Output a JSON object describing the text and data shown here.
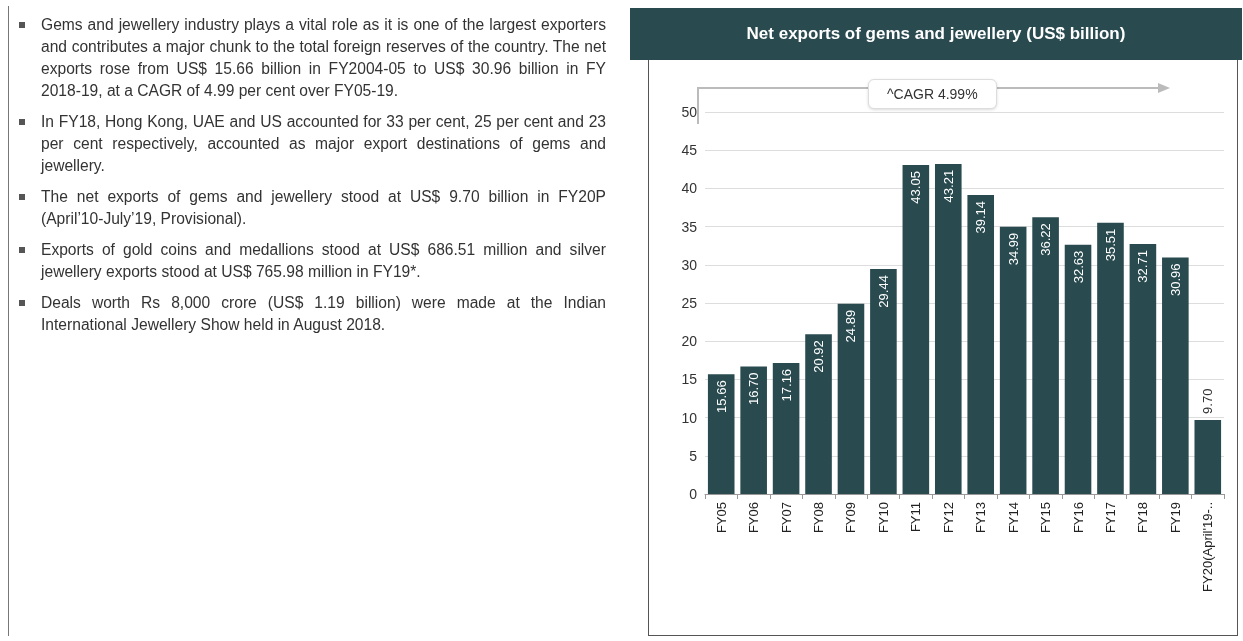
{
  "chart_data": {
    "type": "bar",
    "title": "Net exports of gems and jewellery (US$ billion)",
    "categories": [
      "FY05",
      "FY06",
      "FY07",
      "FY08",
      "FY09",
      "FY10",
      "FY11",
      "FY12",
      "FY13",
      "FY14",
      "FY15",
      "FY16",
      "FY17",
      "FY18",
      "FY19",
      "FY20(April'19-.."
    ],
    "values": [
      15.66,
      16.7,
      17.16,
      20.92,
      24.89,
      29.44,
      43.05,
      43.21,
      39.14,
      34.99,
      36.22,
      32.63,
      35.51,
      32.71,
      30.96,
      9.7
    ],
    "value_labels": [
      "15.66",
      "16.70",
      "17.16",
      "20.92",
      "24.89",
      "29.44",
      "43.05",
      "43.21",
      "39.14",
      "34.99",
      "36.22",
      "32.63",
      "35.51",
      "32.71",
      "30.96",
      "9.70"
    ],
    "color": "#294a4f",
    "ylim": [
      0,
      50
    ],
    "yticks": [
      0,
      5,
      10,
      15,
      20,
      25,
      30,
      35,
      40,
      45,
      50
    ],
    "grid": "y",
    "annotations": [
      "^CAGR 4.99%",
      "Gems and jewellery industry plays a vital role as it is one of the largest exporters and contributes a major chunk to the total foreign reserves of the country. The net exports rose from US$ 15.66 billion in FY2004-05 to US$ 30.96 billion in FY 2018-19, at a CAGR of 4.99 per cent over FY05-19.",
      "In FY18, Hong Kong, UAE and US accounted for 33 per cent, 25 per cent and 23 per cent respectively, accounted as major export destinations of gems and jewellery.",
      "The net exports of gems and jewellery stood at US$ 9.70 billion in FY20P (April’10-July’19, Provisional).",
      "Exports of gold coins and medallions stood at US$ 686.51 million and silver jewellery exports stood at US$ 765.98 million in FY19*.",
      "Deals worth Rs 8,000 crore (US$ 1.19 billion) were made at the Indian International Jewellery Show held in August 2018."
    ]
  }
}
